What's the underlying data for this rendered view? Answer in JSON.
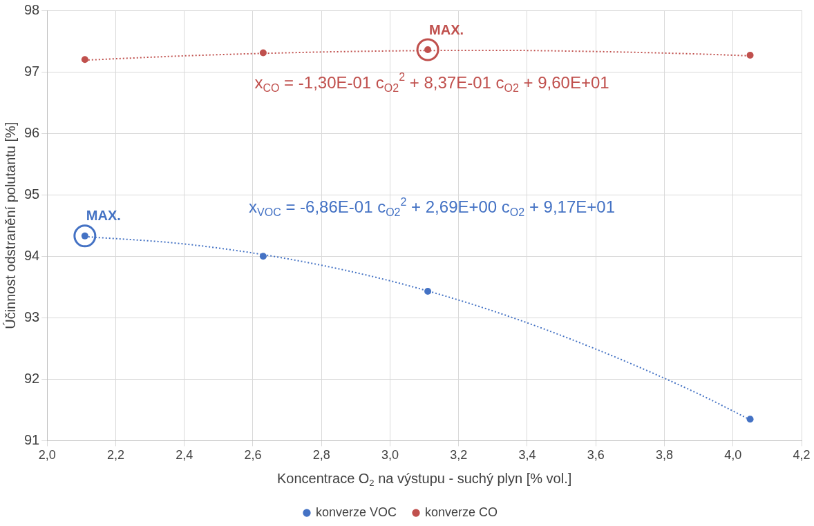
{
  "chart_data": {
    "type": "scatter",
    "xlabel": "Koncentrace O$_{2}$ na výstupu - suchý plyn [% vol.]",
    "ylabel": "Účinnost odstranění polutantu [%]",
    "series": [
      {
        "name": "konverze VOC",
        "color": "#4472c4",
        "x": [
          2.11,
          2.63,
          3.11,
          4.05
        ],
        "values": [
          94.33,
          94.0,
          93.43,
          91.35
        ]
      },
      {
        "name": "konverze CO",
        "color": "#c0504d",
        "x": [
          2.11,
          2.63,
          3.11,
          4.05
        ],
        "values": [
          97.2,
          97.31,
          97.36,
          97.27
        ]
      },
      {
        "type": "line",
        "color": "#4472c4",
        "marker": "none",
        "line_style": "dotted",
        "x": [
          2.11,
          2.4,
          2.7,
          3.0,
          3.3,
          3.6,
          3.9,
          4.05
        ],
        "values": [
          94.32,
          94.2,
          93.96,
          93.6,
          93.11,
          92.49,
          91.76,
          91.34
        ]
      },
      {
        "type": "line",
        "color": "#c0504d",
        "marker": "none",
        "line_style": "dotted",
        "x": [
          2.11,
          2.4,
          2.7,
          3.0,
          3.3,
          3.6,
          3.9,
          4.05
        ],
        "values": [
          97.19,
          97.26,
          97.31,
          97.34,
          97.35,
          97.33,
          97.29,
          97.26
        ]
      }
    ],
    "xlim": [
      2.0,
      4.2
    ],
    "xticks": [
      {
        "value": 2.0,
        "label": "2,0"
      },
      {
        "value": 2.2,
        "label": "2,2"
      },
      {
        "value": 2.4,
        "label": "2,4"
      },
      {
        "value": 2.6,
        "label": "2,6"
      },
      {
        "value": 2.8,
        "label": "2,8"
      },
      {
        "value": 3.0,
        "label": "3,0"
      },
      {
        "value": 3.2,
        "label": "3,2"
      },
      {
        "value": 3.4,
        "label": "3,4"
      },
      {
        "value": 3.6,
        "label": "3,6"
      },
      {
        "value": 3.8,
        "label": "3,8"
      },
      {
        "value": 4.0,
        "label": "4,0"
      },
      {
        "value": 4.2,
        "label": "4,2"
      }
    ],
    "ylim": [
      91,
      98
    ],
    "yticks": [
      91,
      92,
      93,
      94,
      95,
      96,
      97,
      98
    ],
    "annotations": [
      {
        "text": "MAX.",
        "x": 2.11,
        "y": 94.33
      },
      {
        "text": "MAX.",
        "x": 3.11,
        "y": 97.36
      },
      "x$_{CO}$ = -1,30E-01 c$_{O2}$$^{2}$ + 8,37E-01 c$_{O2}$ + 9,60E+01",
      "x$_{VOC}$ = -6,86E-01 c$_{O2}$$^{2}$ + 2,69E+00 c$_{O2}$ + 9,17E+01"
    ],
    "grid": true,
    "legend": "bottom",
    "marker": "circle"
  }
}
